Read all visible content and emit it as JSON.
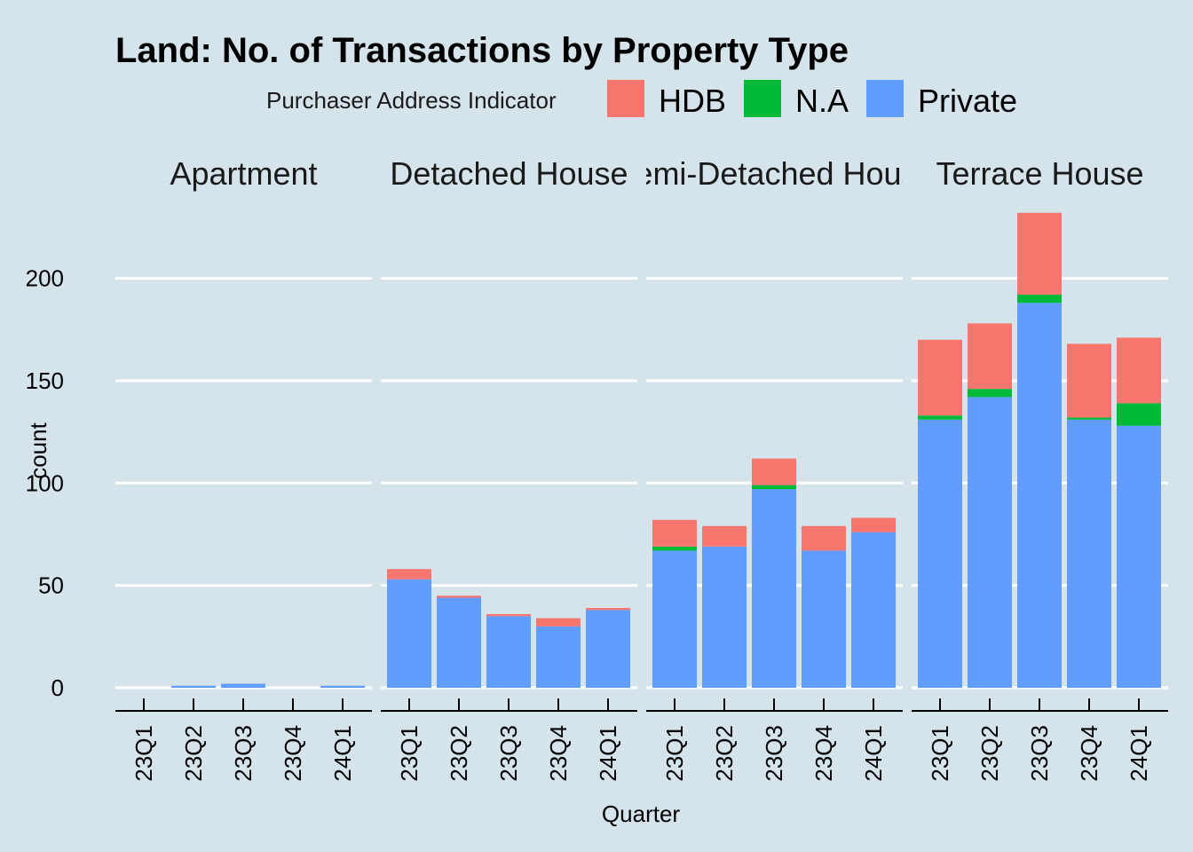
{
  "chart_data": {
    "type": "bar",
    "stacked": true,
    "faceted": true,
    "title": "Land: No. of Transactions by Property Type",
    "xlabel": "Quarter",
    "ylabel": "count",
    "ylim": [
      0,
      232
    ],
    "yticks": [
      0,
      50,
      100,
      150,
      200
    ],
    "grid": true,
    "legend": {
      "title": "Purchaser Address Indicator",
      "position": "top",
      "entries": [
        "HDB",
        "N.A",
        "Private"
      ]
    },
    "colors": {
      "HDB": "#f8766d",
      "N.A": "#00ba38",
      "Private": "#619cff"
    },
    "categories": [
      "23Q1",
      "23Q2",
      "23Q3",
      "23Q4",
      "24Q1"
    ],
    "stack_order": [
      "Private",
      "N.A",
      "HDB"
    ],
    "panels": [
      {
        "label": "Apartment",
        "series": [
          {
            "name": "Private",
            "values": [
              0,
              1,
              2,
              0,
              1
            ]
          },
          {
            "name": "N.A",
            "values": [
              0,
              0,
              0,
              0,
              0
            ]
          },
          {
            "name": "HDB",
            "values": [
              0,
              0,
              0,
              0,
              0
            ]
          }
        ]
      },
      {
        "label": "Detached House",
        "series": [
          {
            "name": "Private",
            "values": [
              53,
              44,
              35,
              30,
              38
            ]
          },
          {
            "name": "N.A",
            "values": [
              0,
              0,
              0,
              0,
              0
            ]
          },
          {
            "name": "HDB",
            "values": [
              5,
              1,
              1,
              4,
              1
            ]
          }
        ]
      },
      {
        "label": "Semi-Detached House",
        "series": [
          {
            "name": "Private",
            "values": [
              67,
              69,
              97,
              67,
              76
            ]
          },
          {
            "name": "N.A",
            "values": [
              2,
              0,
              2,
              0,
              0
            ]
          },
          {
            "name": "HDB",
            "values": [
              13,
              10,
              13,
              12,
              7
            ]
          }
        ]
      },
      {
        "label": "Terrace House",
        "series": [
          {
            "name": "Private",
            "values": [
              131,
              142,
              188,
              131,
              128
            ]
          },
          {
            "name": "N.A",
            "values": [
              2,
              4,
              4,
              1,
              11
            ]
          },
          {
            "name": "HDB",
            "values": [
              37,
              32,
              40,
              36,
              32
            ]
          }
        ]
      }
    ]
  }
}
